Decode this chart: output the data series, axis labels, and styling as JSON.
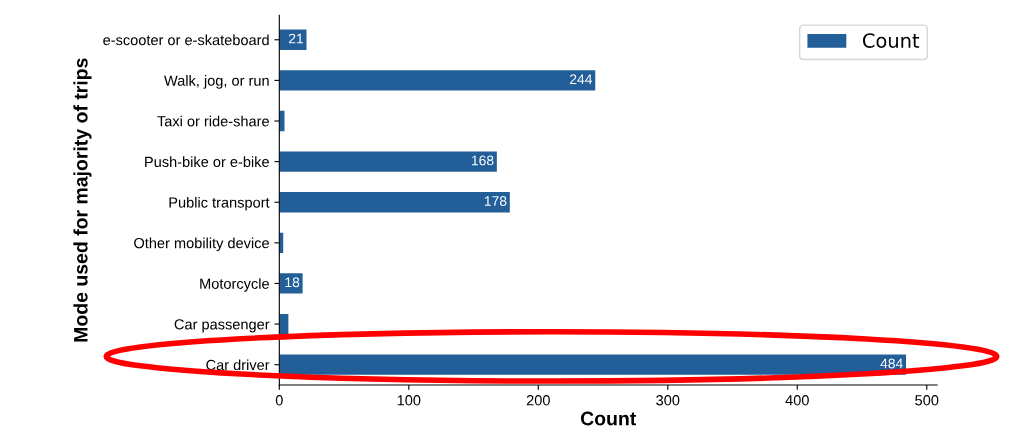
{
  "chart_data": {
    "type": "bar",
    "orientation": "horizontal",
    "xlabel": "Count",
    "ylabel": "Mode used for majority of trips",
    "categories": [
      "e-scooter or e-skateboard",
      "Walk, jog, or run",
      "Taxi or ride-share",
      "Push-bike or e-bike",
      "Public transport",
      "Other mobility device",
      "Motorcycle",
      "Car passenger",
      "Car driver"
    ],
    "series": [
      {
        "name": "Count",
        "color": "#225e98",
        "values": [
          21,
          244,
          4,
          168,
          178,
          3,
          18,
          7,
          484
        ],
        "value_labels": [
          "21",
          "244",
          null,
          "168",
          "178",
          null,
          "18",
          null,
          "484"
        ]
      }
    ],
    "xlim": [
      0,
      508
    ],
    "xticks": [
      0,
      100,
      200,
      300,
      400,
      500
    ],
    "grid": false,
    "legend": "top right"
  }
}
